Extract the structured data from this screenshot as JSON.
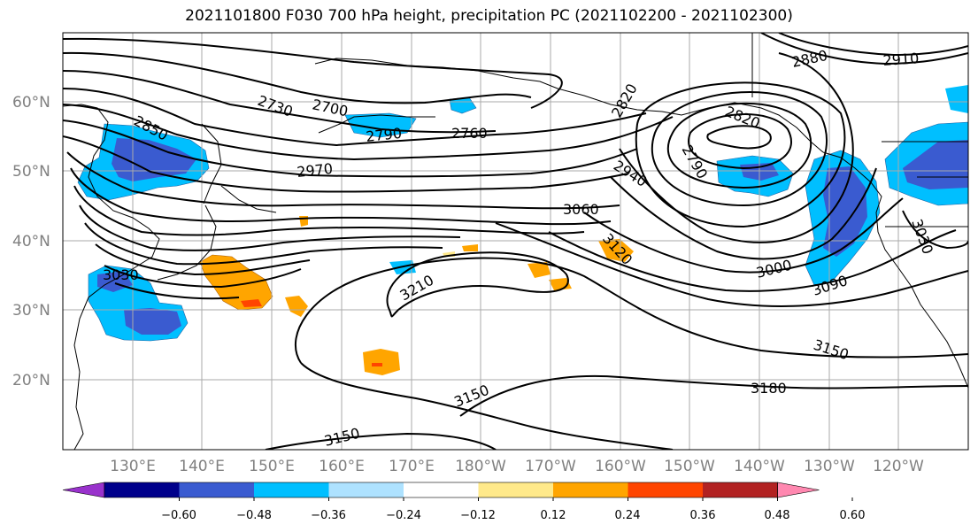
{
  "title": "2021101800 F030 700 hPa height, precipitation PC (2021102200 - 2021102300)",
  "latitude_labels": [
    "60°N",
    "50°N",
    "40°N",
    "30°N",
    "20°N"
  ],
  "longitude_labels": [
    "130°E",
    "140°E",
    "150°E",
    "160°E",
    "170°E",
    "180°W",
    "170°W",
    "160°W",
    "150°W",
    "140°W",
    "130°W",
    "120°W"
  ],
  "contour_labels": [
    "2850",
    "2730",
    "2700",
    "2790",
    "2760",
    "2970",
    "2820",
    "2820",
    "2790",
    "2940",
    "2880",
    "2910",
    "3060",
    "3120",
    "3000",
    "3090",
    "3030",
    "3030",
    "3210",
    "3150",
    "3150",
    "3180",
    "3150"
  ],
  "colorbar": {
    "ticks": [
      "−0.60",
      "−0.48",
      "−0.36",
      "−0.24",
      "−0.12",
      "0.12",
      "0.24",
      "0.36",
      "0.48",
      "0.60"
    ],
    "colors": [
      "#9932cc",
      "#00008b",
      "#3a5bd0",
      "#00bfff",
      "#aee2ff",
      "#ffffff",
      "#ffe98a",
      "#ffa500",
      "#ff4500",
      "#b22222",
      "#ff88b0"
    ]
  },
  "chart_data": {
    "type": "map",
    "title": "2021101800 F030 700 hPa height, precipitation PC (2021102200 - 2021102300)",
    "extent": {
      "lon_min": 120,
      "lon_max": 250,
      "lat_min": 10,
      "lat_max": 70
    },
    "contour_levels_shown": [
      2700,
      2730,
      2760,
      2790,
      2820,
      2850,
      2880,
      2910,
      2940,
      2970,
      3000,
      3030,
      3060,
      3090,
      3120,
      3150,
      3180,
      3210
    ],
    "colorbar_levels": [
      -0.6,
      -0.48,
      -0.36,
      -0.24,
      -0.12,
      0.12,
      0.24,
      0.36,
      0.48,
      0.6
    ],
    "colorbar_extend": "both"
  }
}
